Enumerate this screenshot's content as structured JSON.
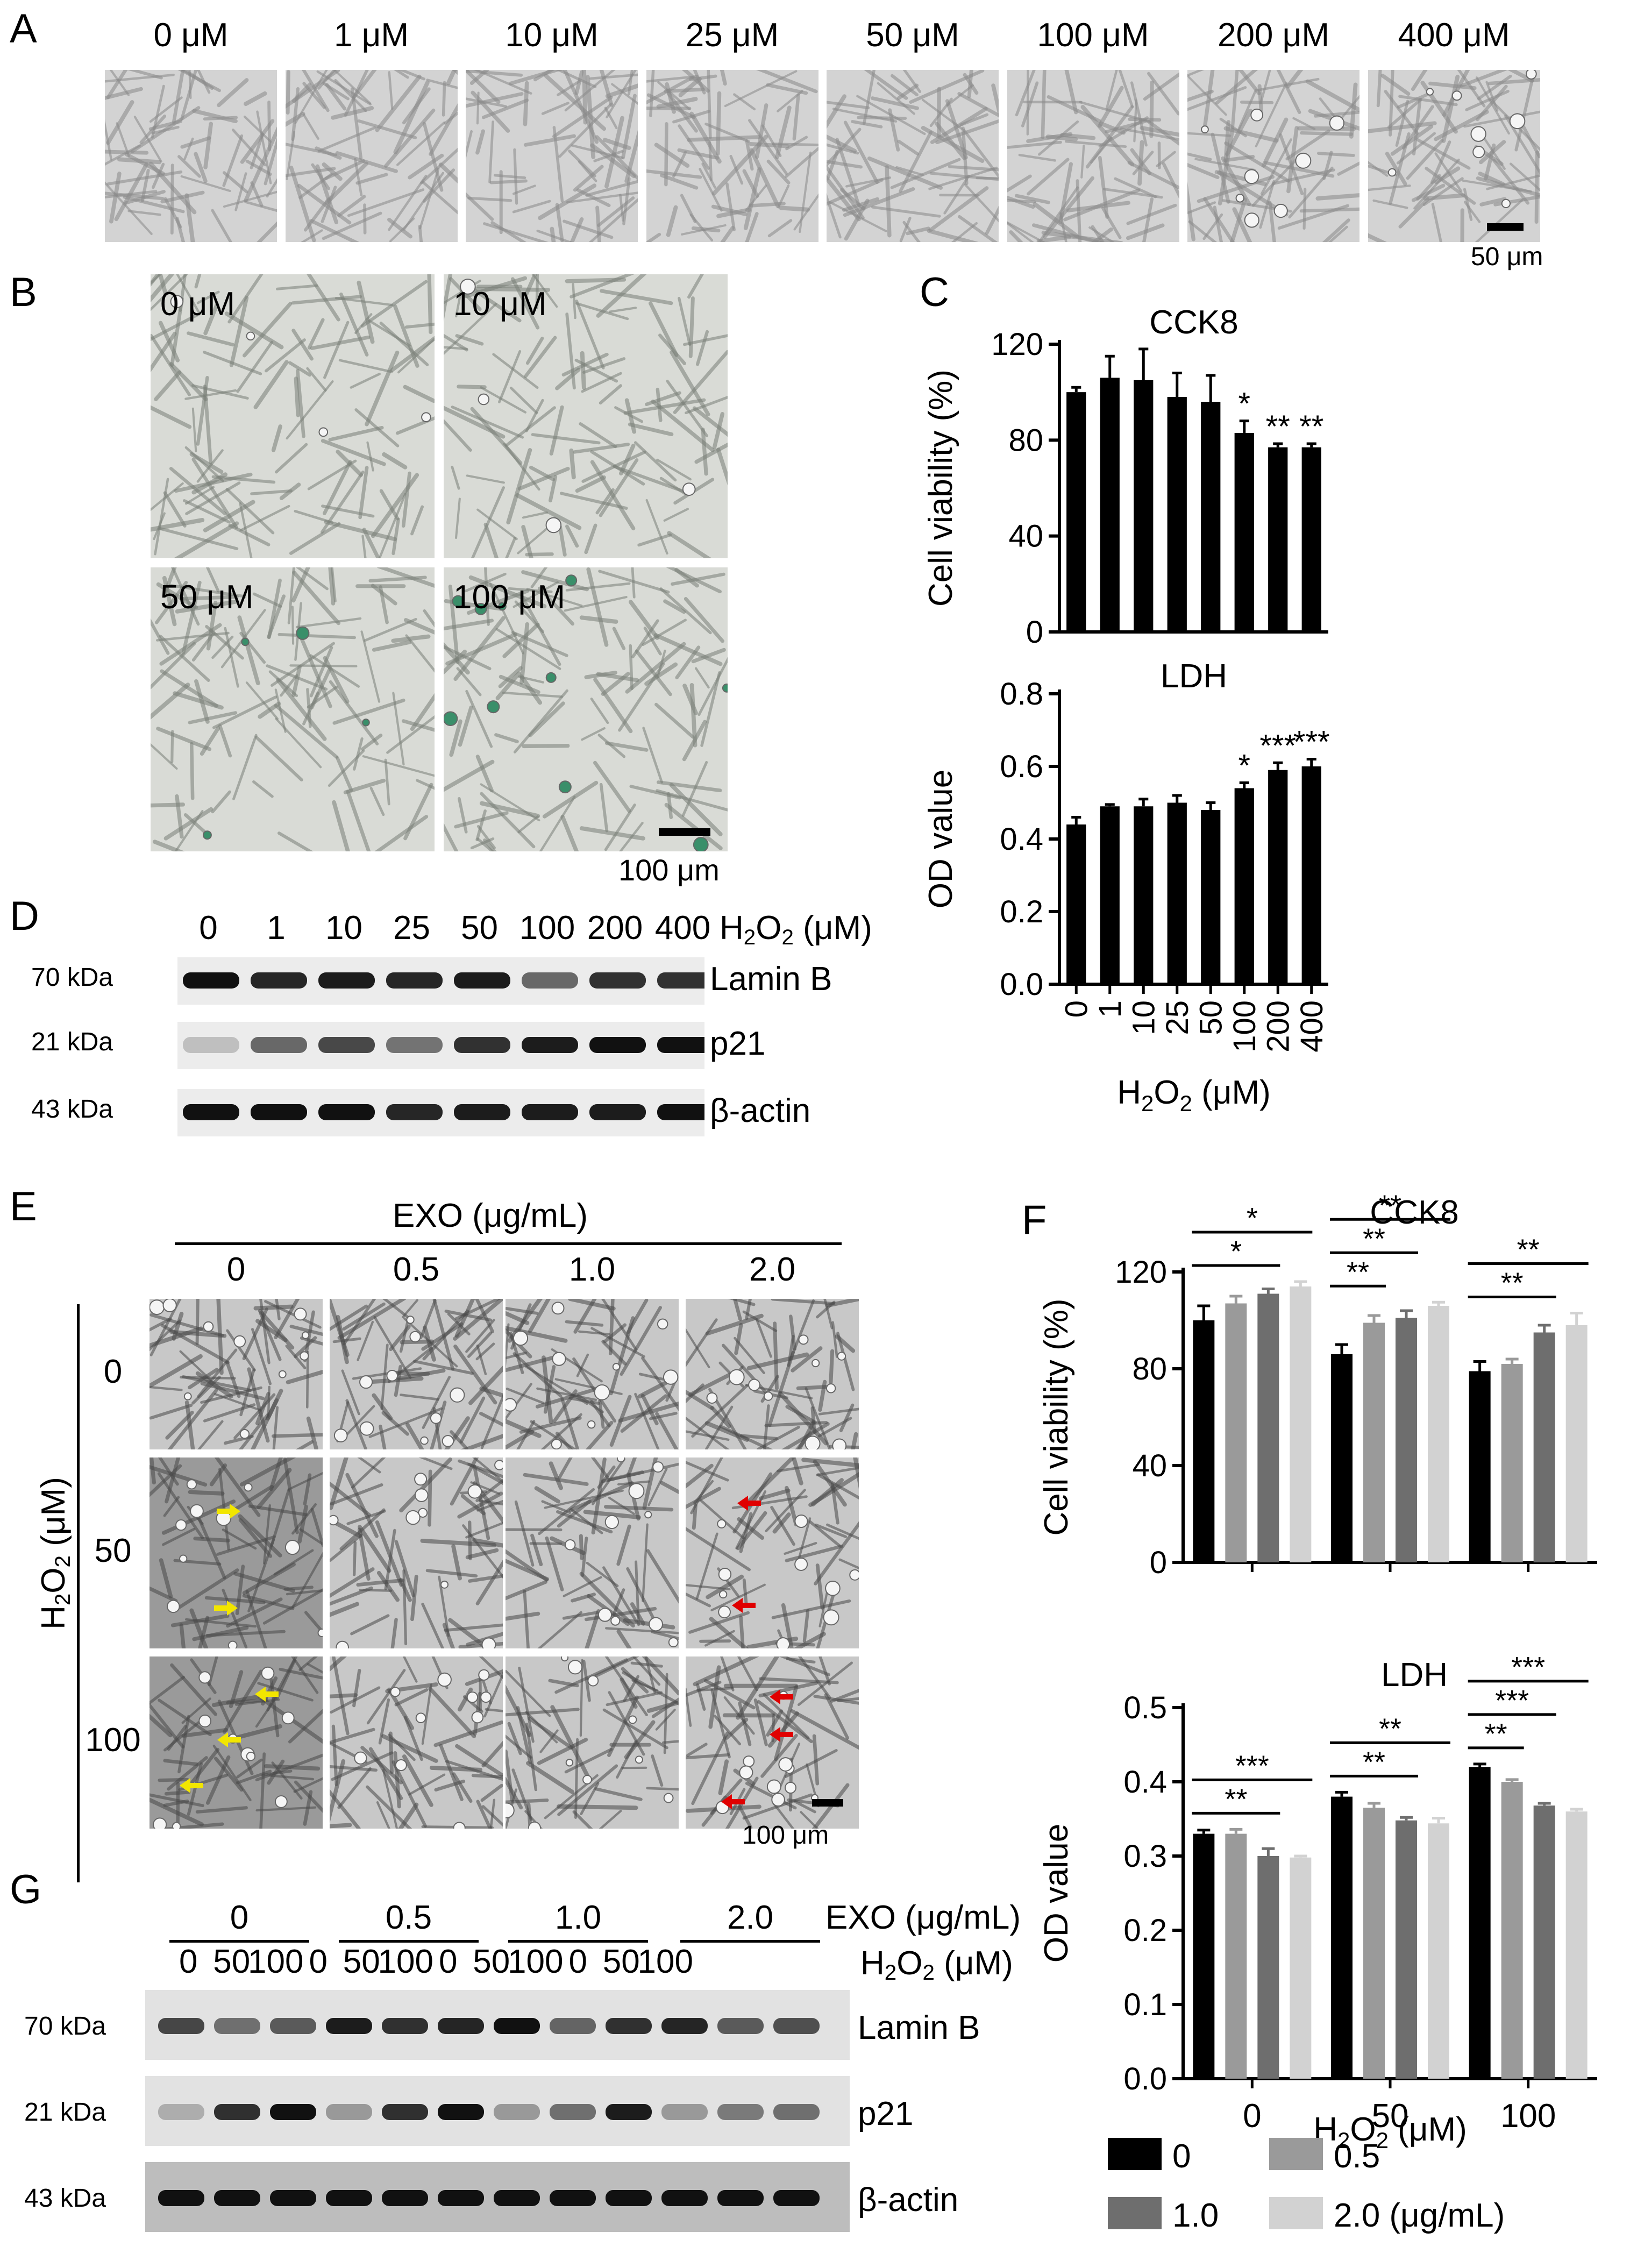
{
  "panelA": {
    "label": "A",
    "conc_labels": [
      "0 μM",
      "1 μM",
      "10 μM",
      "25 μM",
      "50 μM",
      "100 μM",
      "200 μM",
      "400 μM"
    ],
    "scale_bar": "50 μm"
  },
  "panelB": {
    "label": "B",
    "conc_labels": [
      "0 μM",
      "10 μM",
      "50 μM",
      "100 μM"
    ],
    "scale_bar": "100 μm"
  },
  "panelC": {
    "label": "C"
  },
  "panelD": {
    "label": "D",
    "lanes": [
      "0",
      "1",
      "10",
      "25",
      "50",
      "100",
      "200",
      "400"
    ],
    "treatment_label_main": "H",
    "treatment_label_sub": "2",
    "treatment_label_mid": "O",
    "treatment_label_sub2": "2",
    "treatment_label_tail": " (μM)",
    "kda": [
      "70 kDa",
      "21 kDa",
      "43 kDa"
    ],
    "proteins": [
      "Lamin B",
      "p21",
      "β-actin"
    ]
  },
  "panelE": {
    "label": "E",
    "exo_label": "EXO (μg/mL)",
    "exo_conc": [
      "0",
      "0.5",
      "1.0",
      "2.0"
    ],
    "h2o2_rows": [
      "0",
      "50",
      "100"
    ],
    "y_label": "H₂O₂ (μM)",
    "scale_bar": "100 μm"
  },
  "panelF": {
    "label": "F"
  },
  "panelG": {
    "label": "G",
    "exo_groups": [
      "0",
      "0.5",
      "1.0",
      "2.0"
    ],
    "exo_label": "EXO (μg/mL)",
    "h2o2_lanes": [
      "0",
      "50",
      "100",
      "0",
      "50",
      "100",
      "0",
      "50",
      "100",
      "0",
      "50",
      "100"
    ],
    "h2o2_label": "H₂O₂ (μM)",
    "kda": [
      "70 kDa",
      "21 kDa",
      "43 kDa"
    ],
    "proteins": [
      "Lamin B",
      "p21",
      "β-actin"
    ]
  },
  "colors": {
    "bar_black": "#000000",
    "exo_0": "#000000",
    "exo_0_5": "#9a9a9a",
    "exo_1_0": "#6e6e6e",
    "exo_2_0": "#d2d2d2",
    "arrow_yellow": "#f2e600",
    "arrow_red": "#e00000"
  },
  "chart_data": [
    {
      "id": "C-CCK8",
      "type": "bar",
      "title": "CCK8",
      "ylabel": "Cell viability (%)",
      "categories": [
        "0",
        "1",
        "10",
        "25",
        "50",
        "100",
        "200",
        "400"
      ],
      "values": [
        100,
        106,
        105,
        98,
        96,
        83,
        77,
        77
      ],
      "errors": [
        2,
        9,
        13,
        10,
        11,
        5,
        1.5,
        1.5
      ],
      "significance": [
        "",
        "",
        "",
        "",
        "",
        "*",
        "**",
        "**"
      ],
      "ylim": [
        0,
        120
      ],
      "yticks": [
        0,
        40,
        80,
        120
      ]
    },
    {
      "id": "C-LDH",
      "type": "bar",
      "title": "LDH",
      "ylabel": "OD value",
      "xlabel": "H₂O₂ (μM)",
      "categories": [
        "0",
        "1",
        "10",
        "25",
        "50",
        "100",
        "200",
        "400"
      ],
      "values": [
        0.44,
        0.49,
        0.49,
        0.5,
        0.48,
        0.54,
        0.59,
        0.6
      ],
      "errors": [
        0.02,
        0.005,
        0.02,
        0.02,
        0.02,
        0.015,
        0.02,
        0.02
      ],
      "significance": [
        "",
        "",
        "",
        "",
        "",
        "*",
        "***",
        "***"
      ],
      "ylim": [
        0,
        0.8
      ],
      "yticks": [
        "0.0",
        "0.2",
        "0.4",
        "0.6",
        "0.8"
      ]
    },
    {
      "id": "F-CCK8",
      "type": "bar",
      "title": "CCK8",
      "ylabel": "Cell viability (%)",
      "categories": [
        "0",
        "50",
        "100"
      ],
      "series": [
        {
          "name": "0",
          "values": [
            100,
            86,
            79
          ],
          "errors": [
            6,
            4,
            4
          ]
        },
        {
          "name": "0.5",
          "values": [
            107,
            99,
            82
          ],
          "errors": [
            3,
            3,
            2
          ]
        },
        {
          "name": "1.0",
          "values": [
            111,
            101,
            95
          ],
          "errors": [
            2,
            3,
            3
          ]
        },
        {
          "name": "2.0 (μg/mL)",
          "values": [
            114,
            106,
            98
          ],
          "errors": [
            2,
            1.5,
            5
          ]
        }
      ],
      "comparisons": [
        {
          "group": "0",
          "from": "0",
          "to": "1.0",
          "label": "*"
        },
        {
          "group": "0",
          "from": "0",
          "to": "2.0 (μg/mL)",
          "label": "*"
        },
        {
          "group": "50",
          "from": "0",
          "to": "0.5",
          "label": "**"
        },
        {
          "group": "50",
          "from": "0",
          "to": "1.0",
          "label": "**"
        },
        {
          "group": "50",
          "from": "0",
          "to": "2.0 (μg/mL)",
          "label": "**"
        },
        {
          "group": "100",
          "from": "0",
          "to": "1.0",
          "label": "**"
        },
        {
          "group": "100",
          "from": "0",
          "to": "2.0 (μg/mL)",
          "label": "**"
        }
      ],
      "ylim": [
        0,
        120
      ],
      "yticks": [
        0,
        40,
        80,
        120
      ]
    },
    {
      "id": "F-LDH",
      "type": "bar",
      "title": "LDH",
      "ylabel": "OD value",
      "xlabel": "H₂O₂ (μM)",
      "categories": [
        "0",
        "50",
        "100"
      ],
      "series": [
        {
          "name": "0",
          "values": [
            0.33,
            0.38,
            0.42
          ],
          "errors": [
            0.005,
            0.006,
            0.004
          ]
        },
        {
          "name": "0.5",
          "values": [
            0.33,
            0.365,
            0.4
          ],
          "errors": [
            0.006,
            0.006,
            0.003
          ]
        },
        {
          "name": "1.0",
          "values": [
            0.3,
            0.348,
            0.368
          ],
          "errors": [
            0.01,
            0.004,
            0.003
          ]
        },
        {
          "name": "2.0 (μg/mL)",
          "values": [
            0.298,
            0.344,
            0.36
          ],
          "errors": [
            0.002,
            0.007,
            0.003
          ]
        }
      ],
      "comparisons": [
        {
          "group": "0",
          "from": "0",
          "to": "1.0",
          "label": "**"
        },
        {
          "group": "0",
          "from": "0",
          "to": "2.0 (μg/mL)",
          "label": "***"
        },
        {
          "group": "50",
          "from": "0",
          "to": "1.0",
          "label": "**"
        },
        {
          "group": "50",
          "from": "0",
          "to": "2.0 (μg/mL)",
          "label": "**"
        },
        {
          "group": "100",
          "from": "0",
          "to": "0.5",
          "label": "**"
        },
        {
          "group": "100",
          "from": "0",
          "to": "1.0",
          "label": "***"
        },
        {
          "group": "100",
          "from": "0",
          "to": "2.0 (μg/mL)",
          "label": "***"
        }
      ],
      "ylim": [
        0,
        0.5
      ],
      "yticks": [
        "0.0",
        "0.1",
        "0.2",
        "0.3",
        "0.4",
        "0.5"
      ],
      "legend": [
        "0",
        "0.5",
        "1.0",
        "2.0 (μg/mL)"
      ],
      "legend_position": "bottom"
    }
  ]
}
